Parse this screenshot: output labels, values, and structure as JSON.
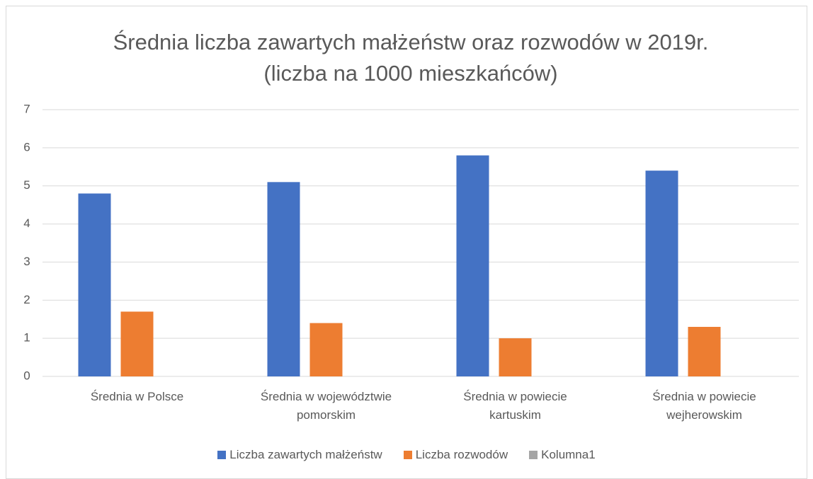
{
  "chart_data": {
    "type": "bar",
    "title": "Średnia liczba zawartych małżeństw oraz rozwodów w 2019r. (liczba na 1000 mieszkańców)",
    "categories": [
      "Średnia w Polsce",
      "Średnia w województwie pomorskim",
      "Średnia w powiecie kartuskim",
      "Średnia w powiecie wejherowskim"
    ],
    "series": [
      {
        "name": "Liczba zawartych małżeństw",
        "color": "#4472c4",
        "values": [
          4.8,
          5.1,
          5.8,
          5.4
        ]
      },
      {
        "name": "Liczba rozwodów",
        "color": "#ed7d31",
        "values": [
          1.7,
          1.4,
          1.0,
          1.3
        ]
      },
      {
        "name": "Kolumna1",
        "color": "#a5a5a5",
        "values": [
          null,
          null,
          null,
          null
        ]
      }
    ],
    "ylim": [
      0,
      7
    ],
    "yticks": [
      0,
      1,
      2,
      3,
      4,
      5,
      6,
      7
    ],
    "grid": true,
    "legend": "bottom"
  }
}
